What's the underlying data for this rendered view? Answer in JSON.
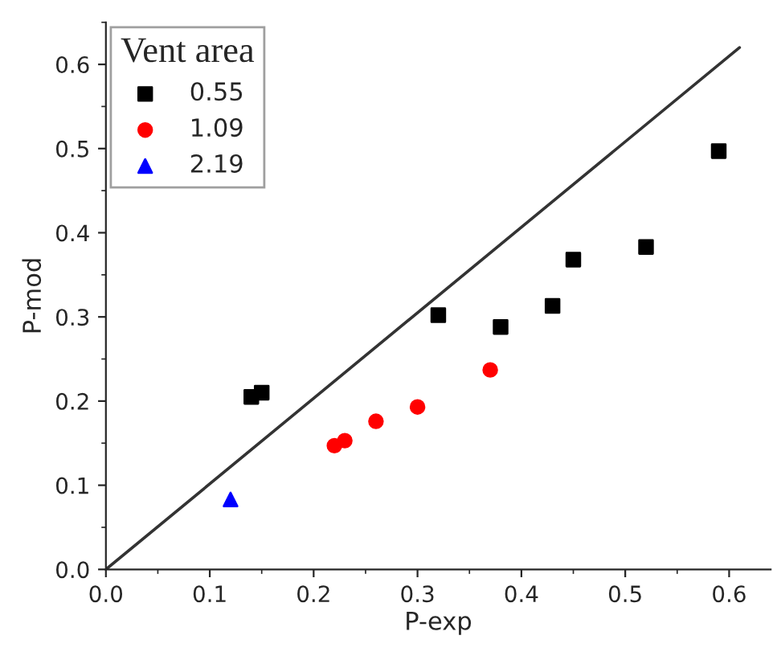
{
  "chart_data": {
    "type": "scatter",
    "xlabel": "P-exp",
    "ylabel": "P-mod",
    "legend_title": "Vent area",
    "legend": "top left",
    "grid": false,
    "xlim": [
      0,
      0.64
    ],
    "ylim": [
      0,
      0.65
    ],
    "xticks": [
      {
        "value": 0,
        "label": "0.0"
      },
      0.1,
      0.2,
      0.3,
      0.4,
      0.5,
      0.6
    ],
    "yticks": [
      {
        "value": 0,
        "label": "0.0"
      },
      0.1,
      0.2,
      0.3,
      0.4,
      0.5,
      0.6
    ],
    "series": [
      {
        "name": "0.55",
        "color": "#000000",
        "marker": "square",
        "x": [
          0.14,
          0.15,
          0.32,
          0.38,
          0.43,
          0.45,
          0.52,
          0.59
        ],
        "values": [
          0.205,
          0.21,
          0.302,
          0.288,
          0.313,
          0.368,
          0.383,
          0.497
        ]
      },
      {
        "name": "1.09",
        "color": "#ff0000",
        "marker": "circle",
        "x": [
          0.22,
          0.23,
          0.26,
          0.3,
          0.37
        ],
        "values": [
          0.147,
          0.153,
          0.176,
          0.193,
          0.237
        ]
      },
      {
        "name": "2.19",
        "color": "#0000ff",
        "marker": "triangle",
        "x": [
          0.12
        ],
        "values": [
          0.083
        ]
      },
      {
        "type": "line",
        "color": "#333333",
        "line_style": "solid",
        "marker": "none",
        "x": [
          0,
          0.61
        ],
        "values": [
          0,
          0.62
        ]
      }
    ]
  }
}
